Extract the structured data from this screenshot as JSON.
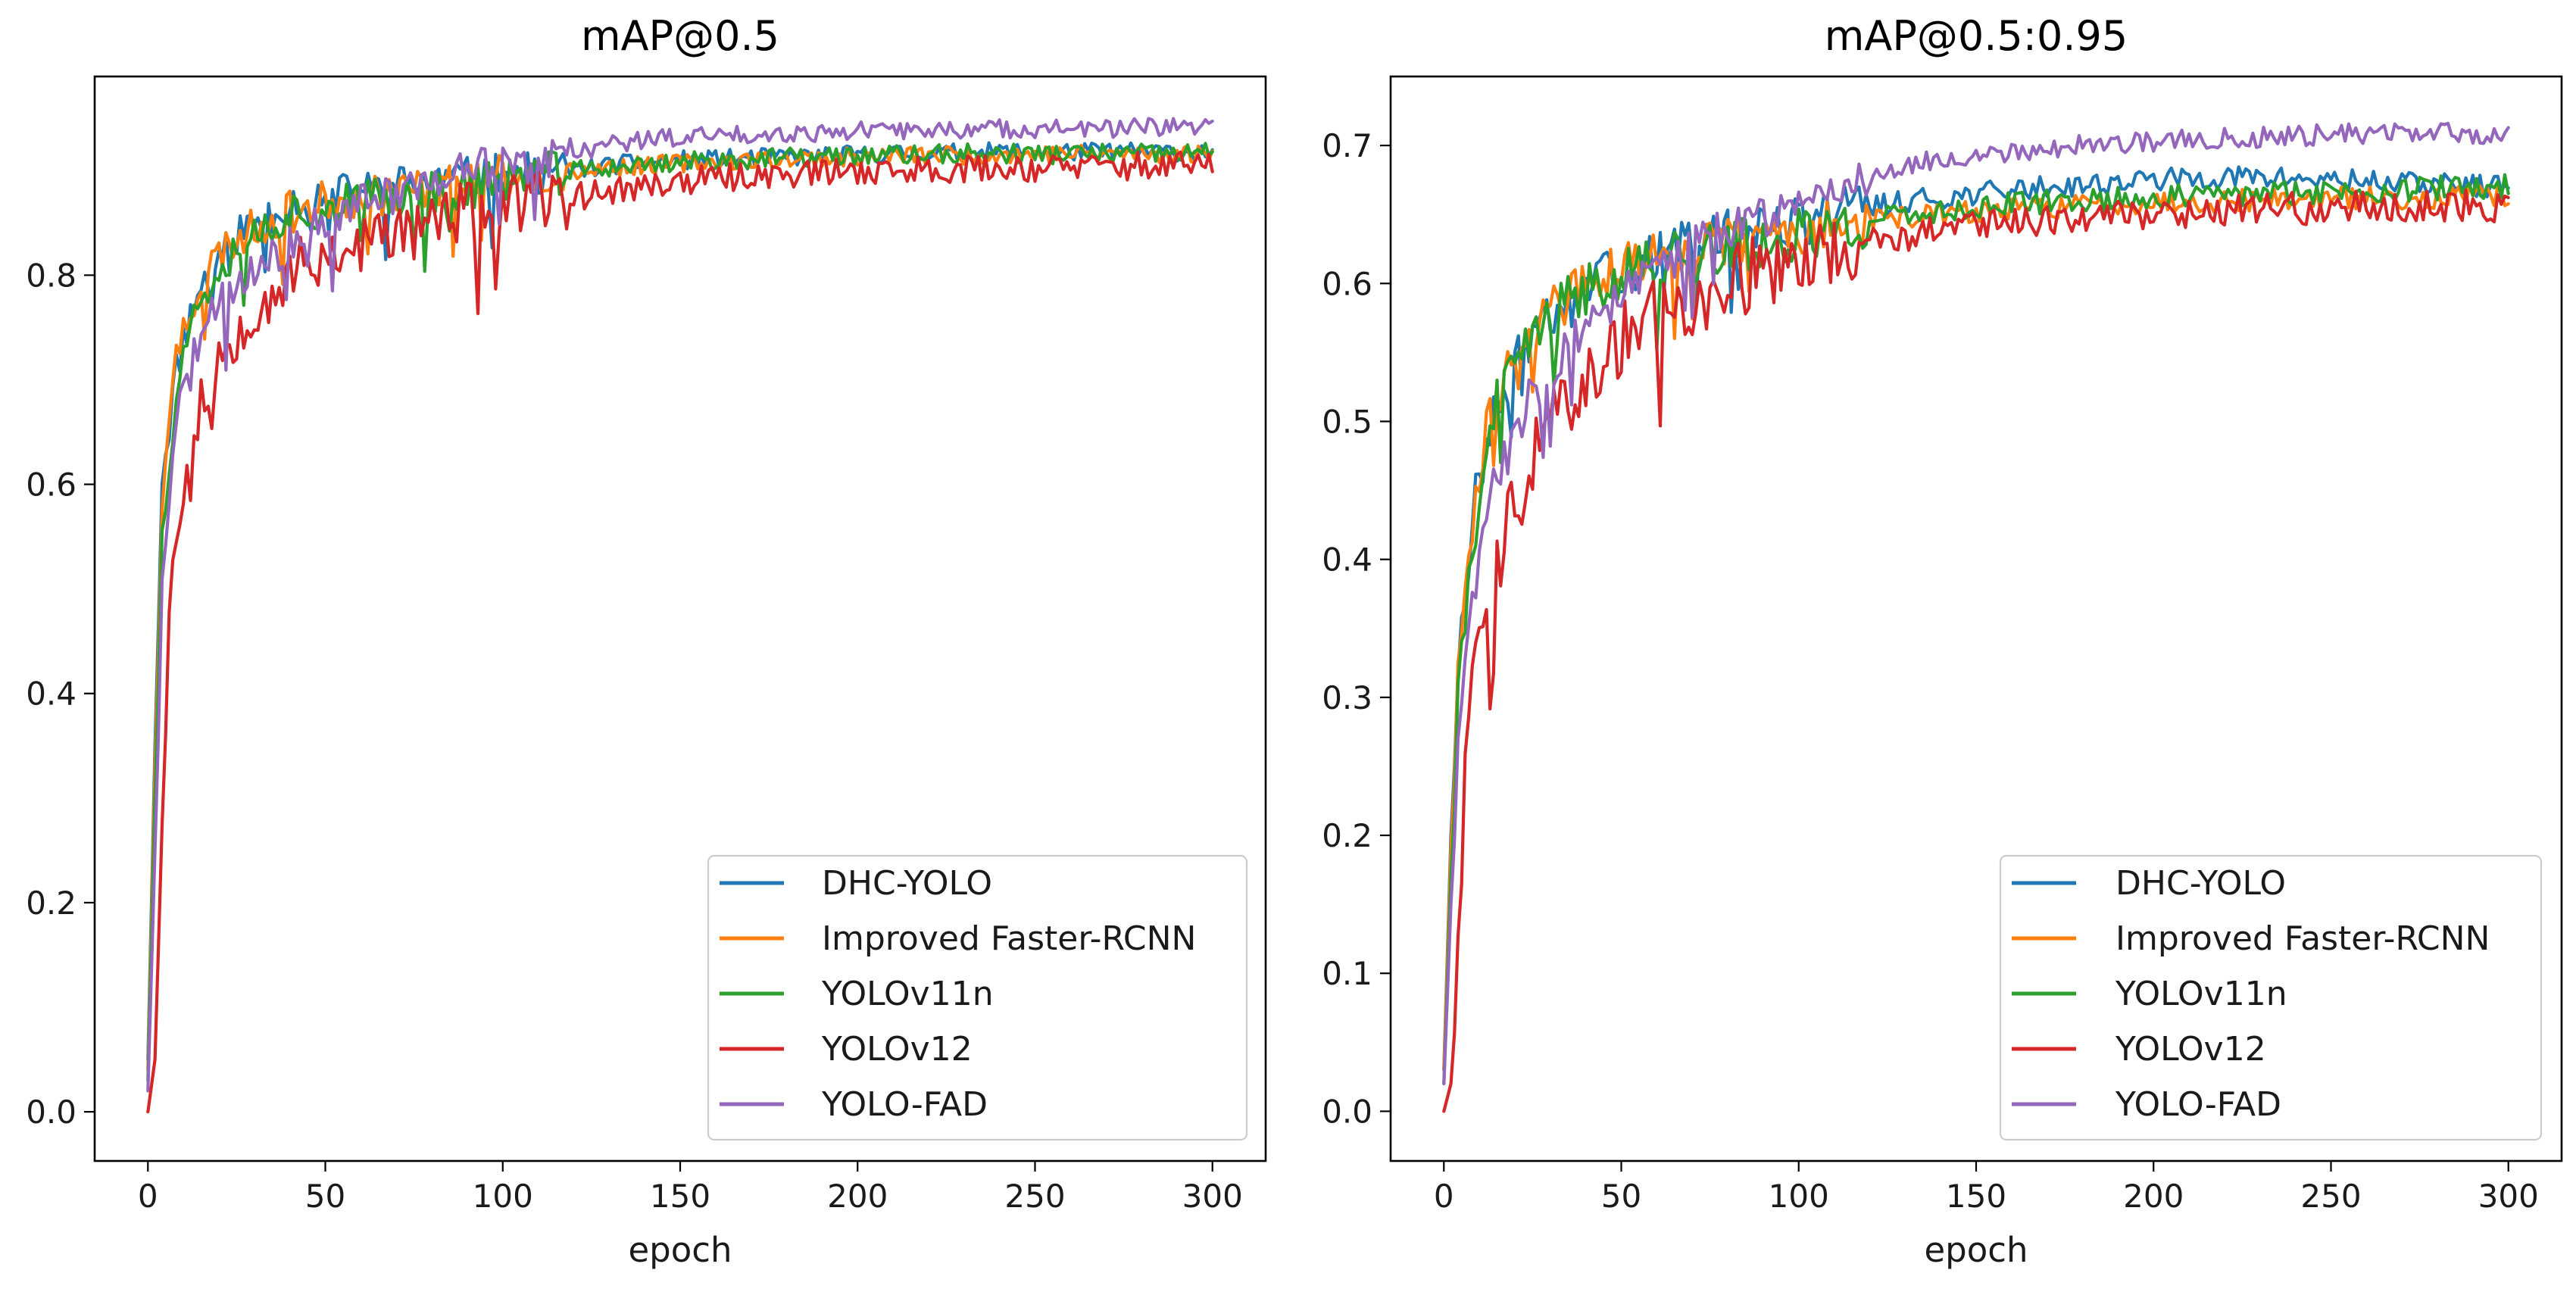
{
  "chart_data": [
    {
      "type": "line",
      "title": "mAP@0.5",
      "xlabel": "epoch",
      "ylabel": "",
      "xlim": [
        -15,
        315
      ],
      "ylim": [
        -0.047,
        0.99
      ],
      "xticks": [
        0,
        50,
        100,
        150,
        200,
        250,
        300
      ],
      "yticks": [
        0.0,
        0.2,
        0.4,
        0.6,
        0.8
      ],
      "ytick_decimals": 1,
      "grid": false,
      "legend_position": "lower-right",
      "x": [
        0,
        2,
        4,
        6,
        8,
        10,
        12,
        15,
        20,
        25,
        30,
        40,
        50,
        60,
        70,
        80,
        90,
        100,
        110,
        120,
        130,
        140,
        150,
        160,
        170,
        180,
        190,
        200,
        210,
        220,
        230,
        240,
        250,
        260,
        270,
        280,
        290,
        300
      ],
      "series": [
        {
          "name": "DHC-YOLO",
          "color": "#1f77b4",
          "noise": 0.012,
          "seed": 11,
          "values": [
            0.05,
            0.35,
            0.61,
            0.66,
            0.71,
            0.74,
            0.76,
            0.79,
            0.82,
            0.84,
            0.85,
            0.87,
            0.875,
            0.88,
            0.885,
            0.89,
            0.893,
            0.896,
            0.898,
            0.9,
            0.905,
            0.908,
            0.91,
            0.911,
            0.912,
            0.913,
            0.914,
            0.915,
            0.916,
            0.917,
            0.917,
            0.918,
            0.918,
            0.918,
            0.918,
            0.918,
            0.918,
            0.918
          ]
        },
        {
          "name": "Improved Faster-RCNN",
          "color": "#ff7f0e",
          "noise": 0.012,
          "seed": 23,
          "values": [
            0.04,
            0.33,
            0.58,
            0.66,
            0.72,
            0.75,
            0.77,
            0.795,
            0.82,
            0.835,
            0.845,
            0.86,
            0.87,
            0.875,
            0.88,
            0.885,
            0.89,
            0.895,
            0.898,
            0.9,
            0.903,
            0.905,
            0.907,
            0.909,
            0.91,
            0.911,
            0.912,
            0.913,
            0.914,
            0.915,
            0.915,
            0.916,
            0.916,
            0.916,
            0.916,
            0.916,
            0.916,
            0.916
          ]
        },
        {
          "name": "YOLOv11n",
          "color": "#2ca02c",
          "noise": 0.013,
          "seed": 37,
          "values": [
            0.03,
            0.3,
            0.55,
            0.63,
            0.69,
            0.73,
            0.75,
            0.78,
            0.81,
            0.83,
            0.84,
            0.86,
            0.865,
            0.87,
            0.875,
            0.88,
            0.885,
            0.89,
            0.895,
            0.9,
            0.903,
            0.906,
            0.908,
            0.91,
            0.911,
            0.912,
            0.913,
            0.914,
            0.915,
            0.915,
            0.916,
            0.916,
            0.916,
            0.916,
            0.916,
            0.916,
            0.916,
            0.917
          ]
        },
        {
          "name": "YOLOv12",
          "color": "#d62728",
          "noise": 0.018,
          "seed": 53,
          "values": [
            0.0,
            0.05,
            0.3,
            0.47,
            0.56,
            0.6,
            0.64,
            0.68,
            0.72,
            0.75,
            0.77,
            0.8,
            0.82,
            0.83,
            0.84,
            0.85,
            0.86,
            0.865,
            0.87,
            0.875,
            0.88,
            0.885,
            0.89,
            0.892,
            0.895,
            0.897,
            0.898,
            0.9,
            0.9,
            0.901,
            0.902,
            0.902,
            0.903,
            0.903,
            0.904,
            0.904,
            0.905,
            0.905
          ]
        },
        {
          "name": "YOLO-FAD",
          "color": "#9467bd",
          "noise": 0.012,
          "seed": 71,
          "values": [
            0.02,
            0.25,
            0.5,
            0.59,
            0.65,
            0.69,
            0.71,
            0.74,
            0.77,
            0.79,
            0.8,
            0.83,
            0.85,
            0.87,
            0.88,
            0.89,
            0.9,
            0.905,
            0.91,
            0.918,
            0.925,
            0.93,
            0.932,
            0.934,
            0.935,
            0.936,
            0.937,
            0.938,
            0.938,
            0.939,
            0.939,
            0.94,
            0.94,
            0.94,
            0.94,
            0.941,
            0.941,
            0.941
          ]
        }
      ]
    },
    {
      "type": "line",
      "title": "mAP@0.5:0.95",
      "xlabel": "epoch",
      "ylabel": "",
      "xlim": [
        -15,
        315
      ],
      "ylim": [
        -0.036,
        0.75
      ],
      "xticks": [
        0,
        50,
        100,
        150,
        200,
        250,
        300
      ],
      "yticks": [
        0.0,
        0.1,
        0.2,
        0.3,
        0.4,
        0.5,
        0.6,
        0.7
      ],
      "ytick_decimals": 1,
      "grid": false,
      "legend_position": "lower-right",
      "x": [
        0,
        2,
        4,
        6,
        8,
        10,
        12,
        15,
        20,
        25,
        30,
        40,
        50,
        60,
        70,
        80,
        90,
        100,
        110,
        120,
        130,
        140,
        150,
        160,
        170,
        180,
        190,
        200,
        210,
        220,
        230,
        240,
        250,
        260,
        270,
        280,
        290,
        300
      ],
      "series": [
        {
          "name": "DHC-YOLO",
          "color": "#1f77b4",
          "noise": 0.011,
          "seed": 13,
          "values": [
            0.03,
            0.2,
            0.32,
            0.38,
            0.43,
            0.46,
            0.48,
            0.51,
            0.54,
            0.56,
            0.575,
            0.595,
            0.61,
            0.62,
            0.63,
            0.635,
            0.64,
            0.645,
            0.65,
            0.655,
            0.66,
            0.662,
            0.665,
            0.668,
            0.67,
            0.672,
            0.673,
            0.675,
            0.676,
            0.677,
            0.677,
            0.676,
            0.675,
            0.674,
            0.673,
            0.672,
            0.671,
            0.67
          ]
        },
        {
          "name": "Improved Faster-RCNN",
          "color": "#ff7f0e",
          "noise": 0.011,
          "seed": 29,
          "values": [
            0.03,
            0.19,
            0.31,
            0.37,
            0.42,
            0.46,
            0.49,
            0.52,
            0.55,
            0.57,
            0.58,
            0.6,
            0.61,
            0.62,
            0.625,
            0.63,
            0.635,
            0.64,
            0.643,
            0.645,
            0.648,
            0.65,
            0.652,
            0.654,
            0.655,
            0.657,
            0.658,
            0.659,
            0.66,
            0.66,
            0.661,
            0.661,
            0.662,
            0.662,
            0.662,
            0.662,
            0.663,
            0.663
          ]
        },
        {
          "name": "YOLOv11n",
          "color": "#2ca02c",
          "noise": 0.012,
          "seed": 41,
          "values": [
            0.02,
            0.17,
            0.29,
            0.36,
            0.41,
            0.45,
            0.48,
            0.51,
            0.54,
            0.56,
            0.575,
            0.595,
            0.61,
            0.615,
            0.62,
            0.625,
            0.63,
            0.635,
            0.64,
            0.645,
            0.65,
            0.652,
            0.655,
            0.657,
            0.659,
            0.66,
            0.661,
            0.662,
            0.663,
            0.664,
            0.665,
            0.666,
            0.667,
            0.668,
            0.668,
            0.669,
            0.669,
            0.67
          ]
        },
        {
          "name": "YOLOv12",
          "color": "#d62728",
          "noise": 0.016,
          "seed": 59,
          "values": [
            0.0,
            0.02,
            0.12,
            0.24,
            0.31,
            0.34,
            0.36,
            0.4,
            0.44,
            0.47,
            0.5,
            0.53,
            0.56,
            0.58,
            0.59,
            0.6,
            0.61,
            0.62,
            0.625,
            0.63,
            0.635,
            0.64,
            0.643,
            0.645,
            0.647,
            0.649,
            0.65,
            0.651,
            0.652,
            0.653,
            0.654,
            0.654,
            0.655,
            0.655,
            0.656,
            0.656,
            0.656,
            0.655
          ]
        },
        {
          "name": "YOLO-FAD",
          "color": "#9467bd",
          "noise": 0.01,
          "seed": 83,
          "values": [
            0.02,
            0.15,
            0.26,
            0.32,
            0.37,
            0.4,
            0.43,
            0.46,
            0.49,
            0.52,
            0.54,
            0.57,
            0.59,
            0.61,
            0.625,
            0.64,
            0.65,
            0.66,
            0.67,
            0.678,
            0.685,
            0.69,
            0.693,
            0.696,
            0.698,
            0.7,
            0.702,
            0.703,
            0.704,
            0.705,
            0.706,
            0.707,
            0.708,
            0.709,
            0.709,
            0.709,
            0.708,
            0.707
          ]
        }
      ]
    }
  ]
}
